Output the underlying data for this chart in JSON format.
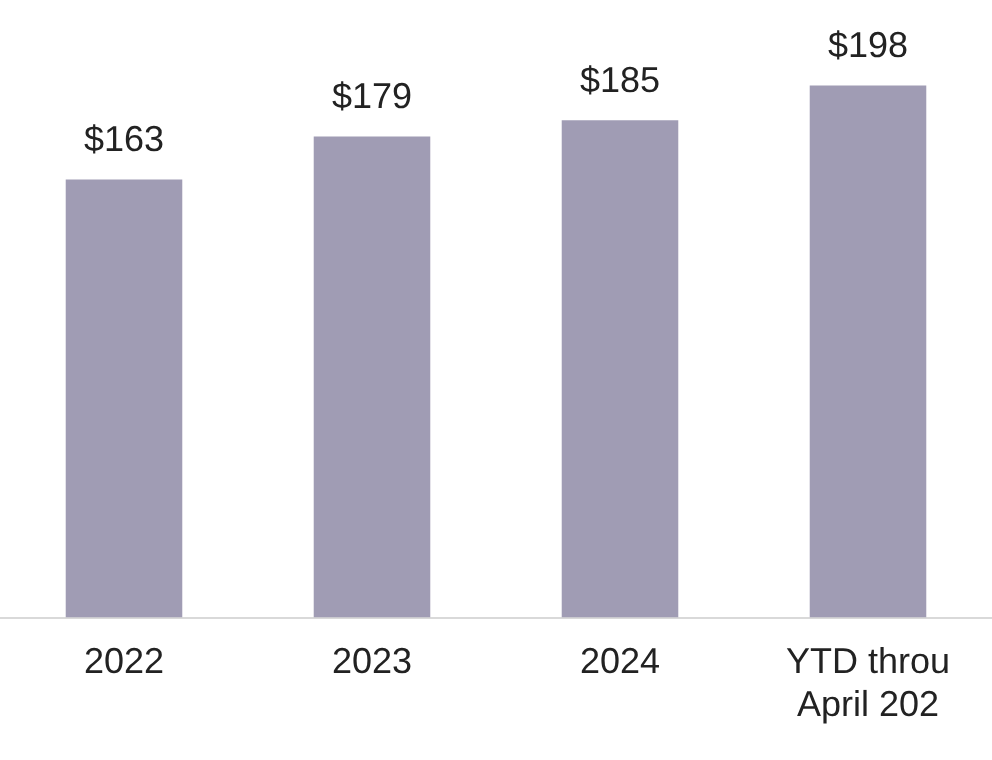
{
  "chart_data": {
    "type": "bar",
    "categories": [
      "2022",
      "2023",
      "2024",
      "YTD throu April 202"
    ],
    "values": [
      163,
      179,
      185,
      198
    ],
    "color": "#a09cb4",
    "value_labels": [
      "$163",
      "$179",
      "$185",
      "$198"
    ],
    "grid": false,
    "legend": false
  }
}
